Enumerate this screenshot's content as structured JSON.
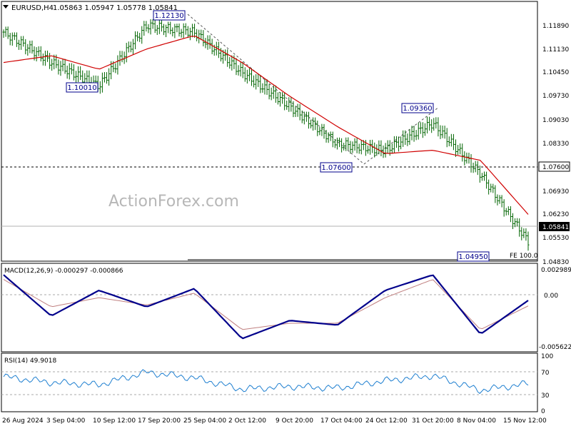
{
  "header": {
    "symbol": "EURUSD,H4",
    "ohlc": "1.05863 1.05947 1.05778 1.05841"
  },
  "watermark": "ActionForex.com",
  "price_scale": [
    "1.11890",
    "1.11130",
    "1.10450",
    "1.09730",
    "1.09030",
    "1.08330",
    "1.07600",
    "1.06930",
    "1.06230",
    "1.05530",
    "1.04830"
  ],
  "price_current_label": "1.05841",
  "price_level_label": "1.07600",
  "time_labels": [
    "26 Aug 2024",
    "3 Sep 04:00",
    "10 Sep 12:00",
    "17 Sep 20:00",
    "25 Sep 04:00",
    "2 Oct 12:00",
    "9 Oct 20:00",
    "17 Oct 04:00",
    "24 Oct 12:00",
    "31 Oct 20:00",
    "8 Nov 04:00",
    "15 Nov 12:00"
  ],
  "annotations": {
    "a1": "1.12130",
    "a2": "1.10010",
    "a3": "1.09360",
    "a4": "1.07600",
    "a5": "1.04950",
    "fe": "FE 100.0"
  },
  "macd": {
    "label": "MACD(12,26,9) -0.000297 -0.000866",
    "scale_top": "0.002989",
    "scale_zero": "0.00",
    "scale_bottom": "-0.005622"
  },
  "rsi": {
    "label": "RSI(14) 49.9018",
    "scale": [
      "100",
      "70",
      "30",
      "0"
    ]
  },
  "colors": {
    "price_bars": "#006400",
    "ma_line": "#d00000",
    "macd_line": "#00008b",
    "signal_line": "#c08080",
    "rsi_line": "#1e7fd0",
    "label_box": "#00008b"
  },
  "chart_data": [
    {
      "type": "line",
      "title": "EURUSD,H4",
      "x": [
        "26 Aug 2024",
        "3 Sep 04:00",
        "10 Sep 12:00",
        "17 Sep 20:00",
        "25 Sep 04:00",
        "2 Oct 12:00",
        "9 Oct 20:00",
        "17 Oct 04:00",
        "24 Oct 12:00",
        "31 Oct 20:00",
        "8 Nov 04:00",
        "15 Nov 12:00"
      ],
      "series": [
        {
          "values": [
            1.117,
            1.108,
            1.101,
            1.119,
            1.117,
            1.105,
            1.095,
            1.084,
            1.082,
            1.09,
            1.075,
            1.055
          ]
        },
        {
          "values": [
            1.108,
            1.11,
            1.106,
            1.112,
            1.116,
            1.108,
            1.098,
            1.089,
            1.081,
            1.082,
            1.079,
            1.063
          ]
        }
      ],
      "ylim": [
        1.0483,
        1.1189
      ],
      "annotations": [
        "1.12130",
        "1.10010",
        "1.09360",
        "1.07600",
        "1.04950",
        "FE 100.0"
      ]
    },
    {
      "type": "line",
      "title": "MACD(12,26,9) -0.000297 -0.000866",
      "x": [
        "26 Aug 2024",
        "3 Sep 04:00",
        "10 Sep 12:00",
        "17 Sep 20:00",
        "25 Sep 04:00",
        "2 Oct 12:00",
        "9 Oct 20:00",
        "17 Oct 04:00",
        "24 Oct 12:00",
        "31 Oct 20:00",
        "8 Nov 04:00",
        "15 Nov 12:00"
      ],
      "series": [
        {
          "values": [
            0.0025,
            -0.002,
            0.0008,
            -0.001,
            0.001,
            -0.0045,
            -0.0025,
            -0.003,
            0.0008,
            0.0025,
            -0.004,
            -0.0003
          ]
        },
        {
          "values": [
            0.002,
            -0.001,
            0.0,
            -0.0008,
            0.0005,
            -0.0035,
            -0.0028,
            -0.0028,
            0.0,
            0.002,
            -0.0035,
            -0.0009
          ]
        }
      ],
      "ylim": [
        -0.005622,
        0.002989
      ]
    },
    {
      "type": "line",
      "title": "RSI(14) 49.9018",
      "x": [
        "26 Aug 2024",
        "3 Sep 04:00",
        "10 Sep 12:00",
        "17 Sep 20:00",
        "25 Sep 04:00",
        "2 Oct 12:00",
        "9 Oct 20:00",
        "17 Oct 04:00",
        "24 Oct 12:00",
        "31 Oct 20:00",
        "8 Nov 04:00",
        "15 Nov 12:00"
      ],
      "series": [
        {
          "values": [
            62,
            52,
            48,
            70,
            60,
            40,
            45,
            42,
            55,
            64,
            38,
            50
          ]
        }
      ],
      "ylim": [
        0,
        100
      ]
    }
  ]
}
